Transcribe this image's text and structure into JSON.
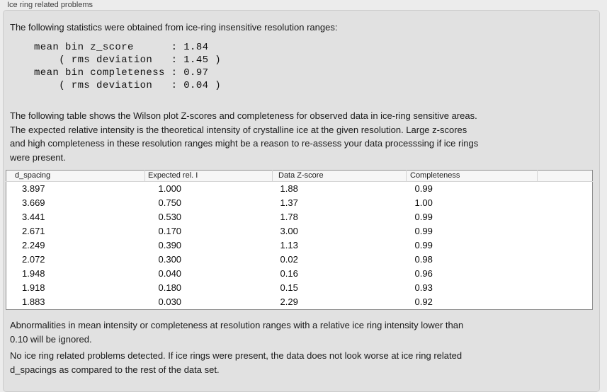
{
  "panel": {
    "title": "Ice ring related problems"
  },
  "intro_text": "The following statistics were obtained from ice-ring insensitive resolution ranges:",
  "stats_block": {
    "lines": [
      "mean bin z_score      : 1.84",
      "    ( rms deviation   : 1.45 )",
      "mean bin completeness : 0.97",
      "    ( rms deviation   : 0.04 )"
    ]
  },
  "description": {
    "lines": [
      "The following table shows the Wilson plot Z-scores and completeness for observed data in ice-ring sensitive areas.",
      "The expected relative intensity is the theoretical intensity of crystalline ice at the given resolution. Large z-scores",
      "and high completeness in these resolution ranges might be a reason to re-assess your data processsing if ice rings",
      "were present."
    ]
  },
  "table": {
    "columns": [
      "d_spacing",
      "Expected rel. I",
      "Data Z-score",
      "Completeness",
      ""
    ],
    "rows": [
      [
        "3.897",
        "1.000",
        "1.88",
        "0.99"
      ],
      [
        "3.669",
        "0.750",
        "1.37",
        "1.00"
      ],
      [
        "3.441",
        "0.530",
        "1.78",
        "0.99"
      ],
      [
        "2.671",
        "0.170",
        "3.00",
        "0.99"
      ],
      [
        "2.249",
        "0.390",
        "1.13",
        "0.99"
      ],
      [
        "2.072",
        "0.300",
        "0.02",
        "0.98"
      ],
      [
        "1.948",
        "0.040",
        "0.16",
        "0.96"
      ],
      [
        "1.918",
        "0.180",
        "0.15",
        "0.93"
      ],
      [
        "1.883",
        "0.030",
        "2.29",
        "0.92"
      ]
    ]
  },
  "notes": {
    "ignore_note": {
      "lines": [
        "Abnormalities in mean intensity or completeness at resolution ranges with a relative ice ring intensity lower than",
        "0.10 will be ignored."
      ]
    },
    "conclusion": {
      "lines": [
        "No ice ring related problems detected. If ice rings were present, the data does not look worse at ice ring related",
        "d_spacings as compared to the rest of the data set."
      ]
    }
  },
  "colors": {
    "page_bg": "#ececec",
    "panel_bg": "#e1e1e1",
    "panel_border": "#cbcbcb",
    "table_border": "#8f8f8f",
    "table_header_bg": "#f6f6f6",
    "text": "#1a1a1a"
  }
}
